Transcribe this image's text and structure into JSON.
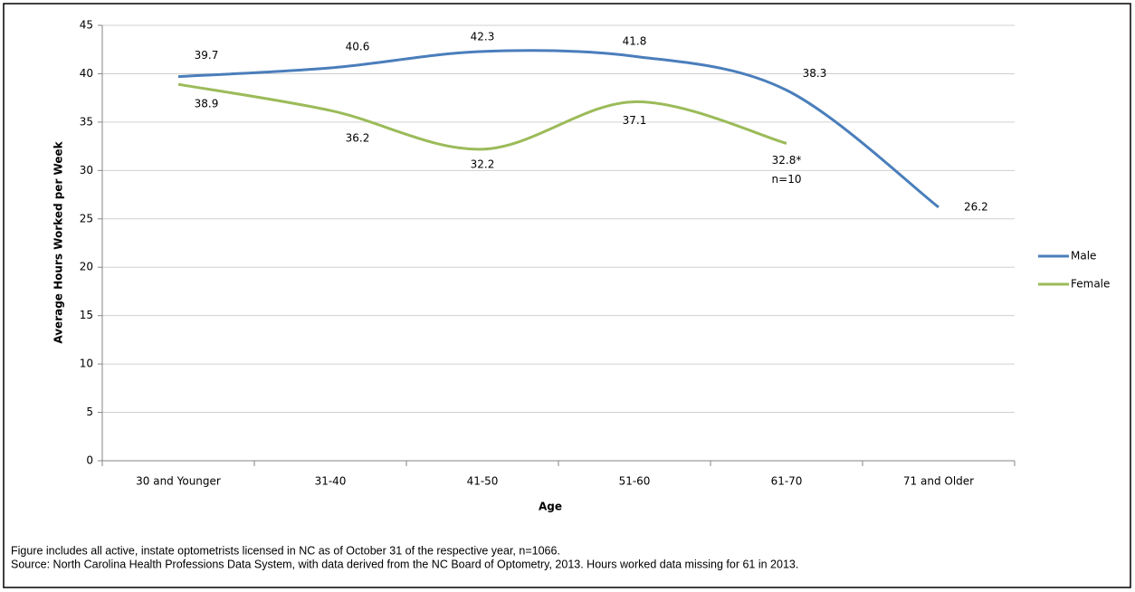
{
  "chart_data": {
    "type": "line",
    "categories": [
      "30 and Younger",
      "31-40",
      "41-50",
      "51-60",
      "61-70",
      "71 and Older"
    ],
    "series": [
      {
        "name": "Male",
        "color": "#4a7ebb",
        "values": [
          39.7,
          40.6,
          42.3,
          41.8,
          38.3,
          26.2
        ]
      },
      {
        "name": "Female",
        "color": "#9bbb59",
        "values": [
          38.9,
          36.2,
          32.2,
          37.1,
          32.8,
          null
        ],
        "value_labels": [
          "38.9",
          "36.2",
          "32.2",
          "37.1",
          "32.8*",
          null
        ]
      }
    ],
    "annotation": "n=10",
    "ylim": [
      0,
      45
    ],
    "yticks": [
      0,
      5,
      10,
      15,
      20,
      25,
      30,
      35,
      40,
      45
    ],
    "grid": true,
    "smooth": true,
    "legend": "right",
    "y_label": "Average Hours Worked per Week",
    "x_label": "Age",
    "notes": [
      "Figure includes all active, instate optometrists licensed in NC as of October 31 of the respective year, n=1066.",
      "Source: North Carolina Health Professions Data System, with data derived from the NC Board of Optometry, 2013. Hours worked data missing for 61 in 2013."
    ]
  }
}
